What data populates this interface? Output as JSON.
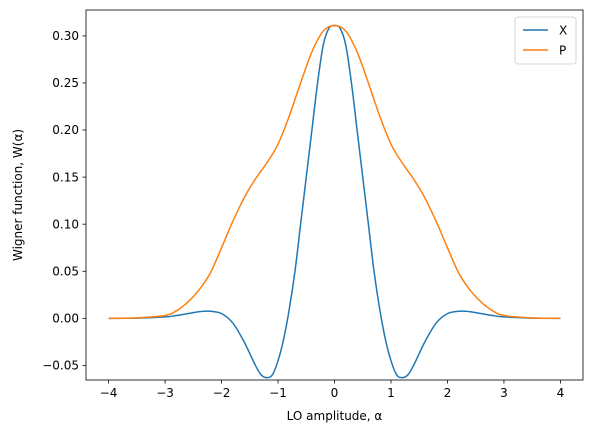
{
  "chart_data": {
    "type": "line",
    "title": "",
    "xlabel": "LO amplitude, α",
    "ylabel": "Wigner function, W(α)",
    "xlim": [
      -4.4,
      4.4
    ],
    "ylim": [
      -0.0655,
      0.3275
    ],
    "xticks": [
      -4,
      -3,
      -2,
      -1,
      0,
      1,
      2,
      3,
      4
    ],
    "xtick_labels": [
      "−4",
      "−3",
      "−2",
      "−1",
      "0",
      "1",
      "2",
      "3",
      "4"
    ],
    "yticks": [
      -0.05,
      0.0,
      0.05,
      0.1,
      0.15,
      0.2,
      0.25,
      0.3
    ],
    "ytick_labels": [
      "−0.05",
      "0.00",
      "0.05",
      "0.10",
      "0.15",
      "0.20",
      "0.25",
      "0.30"
    ],
    "grid": false,
    "legend_position": "top-right",
    "series": [
      {
        "name": "X",
        "color": "#1f77b4",
        "x": [
          -4.0,
          -3.5,
          -3.0,
          -2.8,
          -2.6,
          -2.4,
          -2.2,
          -2.0,
          -1.8,
          -1.6,
          -1.4,
          -1.3,
          -1.2,
          -1.1,
          -1.0,
          -0.9,
          -0.8,
          -0.7,
          -0.6,
          -0.5,
          -0.4,
          -0.3,
          -0.2,
          -0.1,
          0.0,
          0.1,
          0.2,
          0.3,
          0.4,
          0.5,
          0.6,
          0.7,
          0.8,
          0.9,
          1.0,
          1.1,
          1.2,
          1.3,
          1.4,
          1.6,
          1.8,
          2.0,
          2.2,
          2.4,
          2.6,
          2.8,
          3.0,
          3.5,
          4.0
        ],
        "y": [
          0.0,
          0.0002,
          0.0015,
          0.003,
          0.005,
          0.007,
          0.0075,
          0.005,
          -0.005,
          -0.025,
          -0.05,
          -0.06,
          -0.063,
          -0.06,
          -0.045,
          -0.022,
          0.01,
          0.05,
          0.1,
          0.15,
          0.2,
          0.25,
          0.29,
          0.308,
          0.311,
          0.308,
          0.29,
          0.25,
          0.2,
          0.15,
          0.1,
          0.05,
          0.01,
          -0.022,
          -0.045,
          -0.06,
          -0.063,
          -0.06,
          -0.05,
          -0.025,
          -0.005,
          0.005,
          0.0075,
          0.007,
          0.005,
          0.003,
          0.0015,
          0.0002,
          0.0
        ]
      },
      {
        "name": "P",
        "color": "#ff7f0e",
        "x": [
          -4.0,
          -3.5,
          -3.0,
          -2.8,
          -2.6,
          -2.4,
          -2.2,
          -2.0,
          -1.8,
          -1.6,
          -1.4,
          -1.2,
          -1.0,
          -0.8,
          -0.6,
          -0.4,
          -0.2,
          0.0,
          0.2,
          0.4,
          0.6,
          0.8,
          1.0,
          1.2,
          1.4,
          1.6,
          1.8,
          2.0,
          2.2,
          2.4,
          2.6,
          2.8,
          3.0,
          3.5,
          4.0
        ],
        "y": [
          0.0,
          0.0005,
          0.003,
          0.008,
          0.017,
          0.03,
          0.048,
          0.075,
          0.103,
          0.128,
          0.148,
          0.165,
          0.185,
          0.215,
          0.25,
          0.283,
          0.305,
          0.311,
          0.305,
          0.283,
          0.25,
          0.215,
          0.185,
          0.165,
          0.148,
          0.128,
          0.103,
          0.075,
          0.048,
          0.03,
          0.017,
          0.008,
          0.003,
          0.0005,
          0.0
        ]
      }
    ]
  }
}
